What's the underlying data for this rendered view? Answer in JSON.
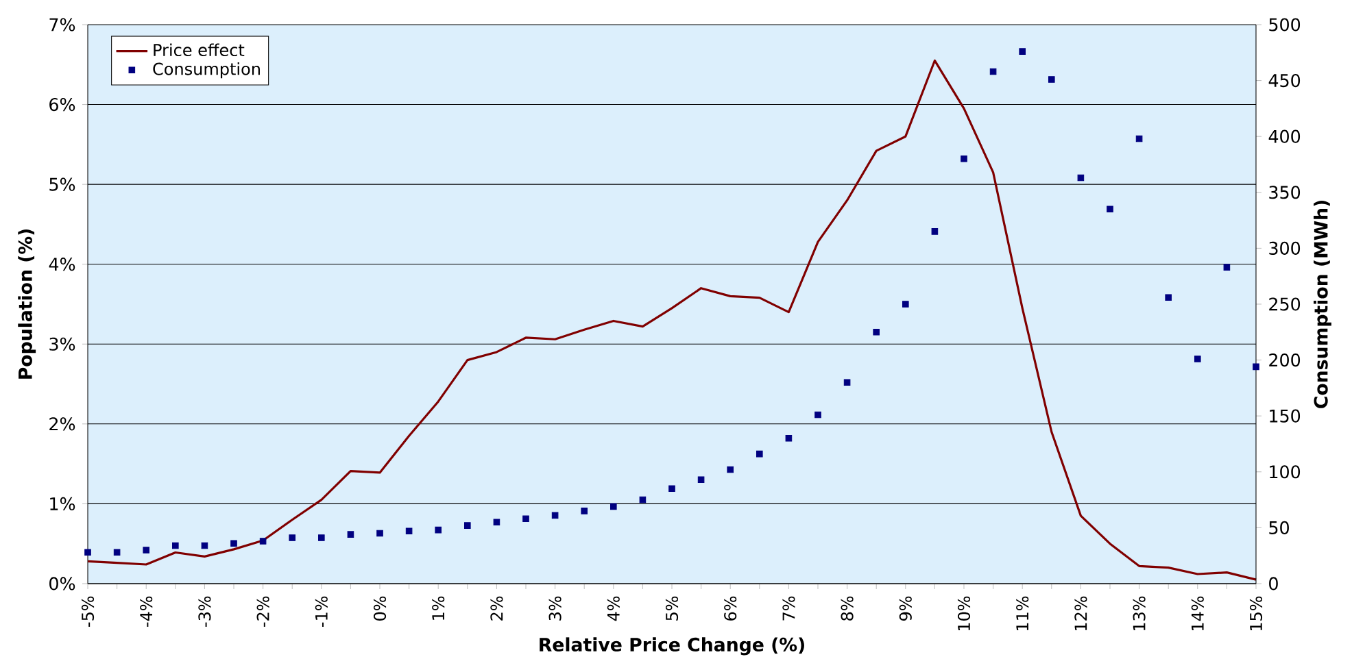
{
  "chart_data": {
    "type": "line",
    "xlabel": "Relative Price Change (%)",
    "ylabel": "Population (%)",
    "y2label": "Consumption (MWh)",
    "categories": [
      "-5%",
      null,
      "-4%",
      null,
      "-3%",
      null,
      "-2%",
      null,
      "-1%",
      null,
      "0%",
      null,
      "1%",
      null,
      "2%",
      null,
      "3%",
      null,
      "4%",
      null,
      "5%",
      null,
      "6%",
      null,
      "7%",
      null,
      "8%",
      null,
      "9%",
      null,
      "10%",
      null,
      "11%",
      null,
      "12%",
      null,
      "13%",
      null,
      "14%",
      null,
      "15%"
    ],
    "series": [
      {
        "name": "Price effect",
        "color": "#800000",
        "values": [
          0.28,
          0.26,
          0.24,
          0.39,
          0.34,
          0.43,
          0.54,
          0.8,
          1.05,
          1.41,
          1.39,
          1.85,
          2.28,
          2.8,
          2.9,
          3.08,
          3.06,
          3.18,
          3.29,
          3.22,
          3.45,
          3.7,
          3.6,
          3.58,
          3.4,
          4.28,
          4.8,
          5.42,
          5.6,
          6.55,
          5.95,
          5.15,
          3.45,
          1.9,
          0.85,
          0.5,
          0.22,
          0.2,
          0.12,
          0.14,
          0.05
        ]
      },
      {
        "name": "Consumption",
        "type": "scatter",
        "axis": "y2",
        "marker": "square",
        "color": "#000080",
        "values": [
          28,
          28,
          30,
          34,
          34,
          36,
          38,
          41,
          41,
          44,
          45,
          47,
          48,
          52,
          55,
          58,
          61,
          65,
          69,
          75,
          85,
          93,
          102,
          116,
          130,
          151,
          180,
          225,
          250,
          315,
          380,
          458,
          476,
          451,
          363,
          335,
          398,
          256,
          201,
          283,
          194
        ]
      }
    ],
    "ylim": [
      0,
      7
    ],
    "yticks": [
      {
        "value": 0,
        "label": "0%"
      },
      {
        "value": 1,
        "label": "1%"
      },
      {
        "value": 2,
        "label": "2%"
      },
      {
        "value": 3,
        "label": "3%"
      },
      {
        "value": 4,
        "label": "4%"
      },
      {
        "value": 5,
        "label": "5%"
      },
      {
        "value": 6,
        "label": "6%"
      },
      {
        "value": 7,
        "label": "7%"
      }
    ],
    "y2lim": [
      0,
      500
    ],
    "y2ticks": [
      0,
      50,
      100,
      150,
      200,
      250,
      300,
      350,
      400,
      450,
      500
    ],
    "grid": "y",
    "legend": "top left"
  }
}
